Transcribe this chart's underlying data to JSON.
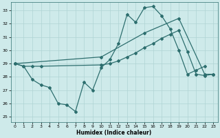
{
  "xlabel": "Humidex (Indice chaleur)",
  "background_color": "#ceeaea",
  "line_color": "#2d6e6e",
  "grid_color": "#afd4d4",
  "xlim": [
    -0.5,
    23.5
  ],
  "ylim": [
    24.6,
    33.6
  ],
  "yticks": [
    25,
    26,
    27,
    28,
    29,
    30,
    31,
    32,
    33
  ],
  "xticks": [
    0,
    1,
    2,
    3,
    4,
    5,
    6,
    7,
    8,
    9,
    10,
    11,
    12,
    13,
    14,
    15,
    16,
    17,
    18,
    19,
    20,
    21,
    22,
    23
  ],
  "series1_x": [
    0,
    1,
    2,
    3,
    4,
    5,
    6,
    7,
    8,
    9,
    10,
    11,
    12,
    13,
    14,
    15,
    16,
    17,
    18,
    19,
    20,
    21,
    22
  ],
  "series1_y": [
    29.0,
    28.8,
    27.8,
    27.4,
    27.2,
    26.0,
    25.9,
    25.4,
    27.6,
    27.0,
    28.7,
    29.3,
    30.5,
    32.7,
    32.1,
    33.2,
    33.3,
    32.6,
    31.6,
    30.0,
    28.2,
    28.5,
    28.8
  ],
  "series2_x": [
    0,
    1,
    2,
    3,
    10,
    11,
    12,
    13,
    14,
    15,
    16,
    17,
    18,
    19,
    20,
    21,
    22,
    23
  ],
  "series2_y": [
    29.0,
    28.8,
    28.8,
    28.8,
    28.9,
    29.0,
    29.2,
    29.5,
    29.8,
    30.2,
    30.5,
    30.9,
    31.2,
    31.5,
    29.9,
    28.2,
    28.1,
    28.2
  ],
  "series3_x": [
    0,
    10,
    15,
    19,
    22,
    23
  ],
  "series3_y": [
    29.0,
    29.5,
    31.3,
    32.4,
    28.2,
    28.2
  ]
}
